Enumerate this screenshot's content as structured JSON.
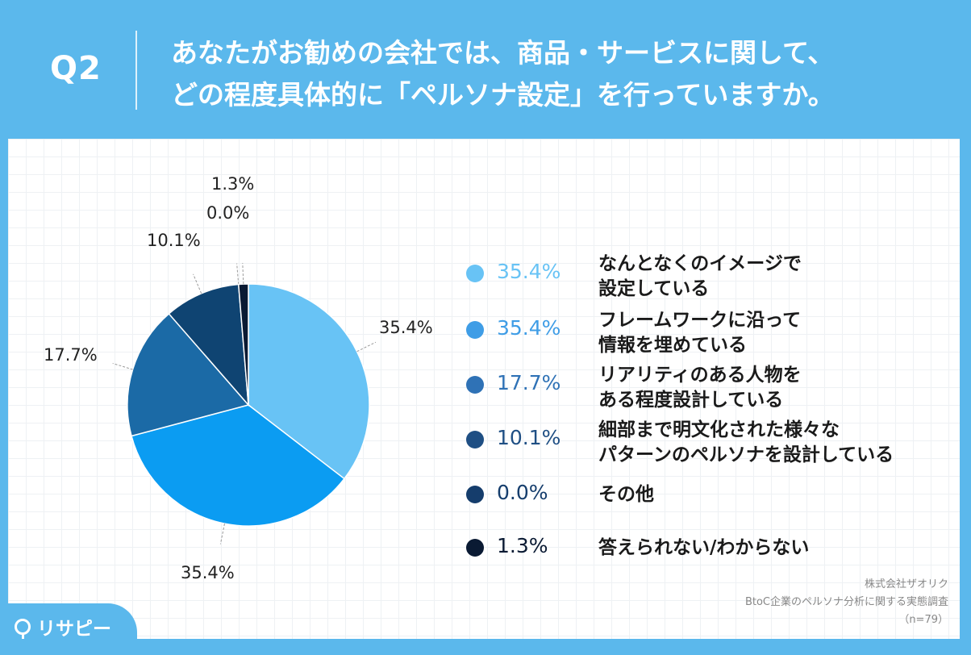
{
  "header": {
    "q_label": "Q2",
    "question_line1": "あなたがお勧めの会社では、商品・サービスに関して、",
    "question_line2": "どの程度具体的に「ペルソナ設定」を行っていますか。"
  },
  "chart_data": {
    "type": "pie",
    "slices": [
      {
        "label": "なんとなくのイメージで\n設定している",
        "value": 35.4,
        "display": "35.4%",
        "color": "#68c3f5"
      },
      {
        "label": "フレームワークに沿って\n情報を埋めている",
        "value": 35.4,
        "display": "35.4%",
        "color": "#0b9cf2"
      },
      {
        "label": "リアリティのある人物を\nある程度設計している",
        "value": 17.7,
        "display": "17.7%",
        "color": "#1b6aa6"
      },
      {
        "label": "細部まで明文化された様々な\nパターンのペルソナを設計している",
        "value": 10.1,
        "display": "10.1%",
        "color": "#0f4472"
      },
      {
        "label": "その他",
        "value": 0.0,
        "display": "0.0%",
        "color": "#0d2d55"
      },
      {
        "label": "答えられない/わからない",
        "value": 1.3,
        "display": "1.3%",
        "color": "#0a1a33"
      }
    ],
    "legend_placement": "right"
  },
  "legend_pct_colors": [
    "#68c3f5",
    "#3f9de6",
    "#2f72b6",
    "#1f4f84",
    "#153d6c",
    "#0a1a33"
  ],
  "source": {
    "company": "株式会社ザオリク",
    "survey": "BtoC企業のペルソナ分析に関する実態調査",
    "n": "（n=79）"
  },
  "logo": {
    "text": "リサピー"
  }
}
